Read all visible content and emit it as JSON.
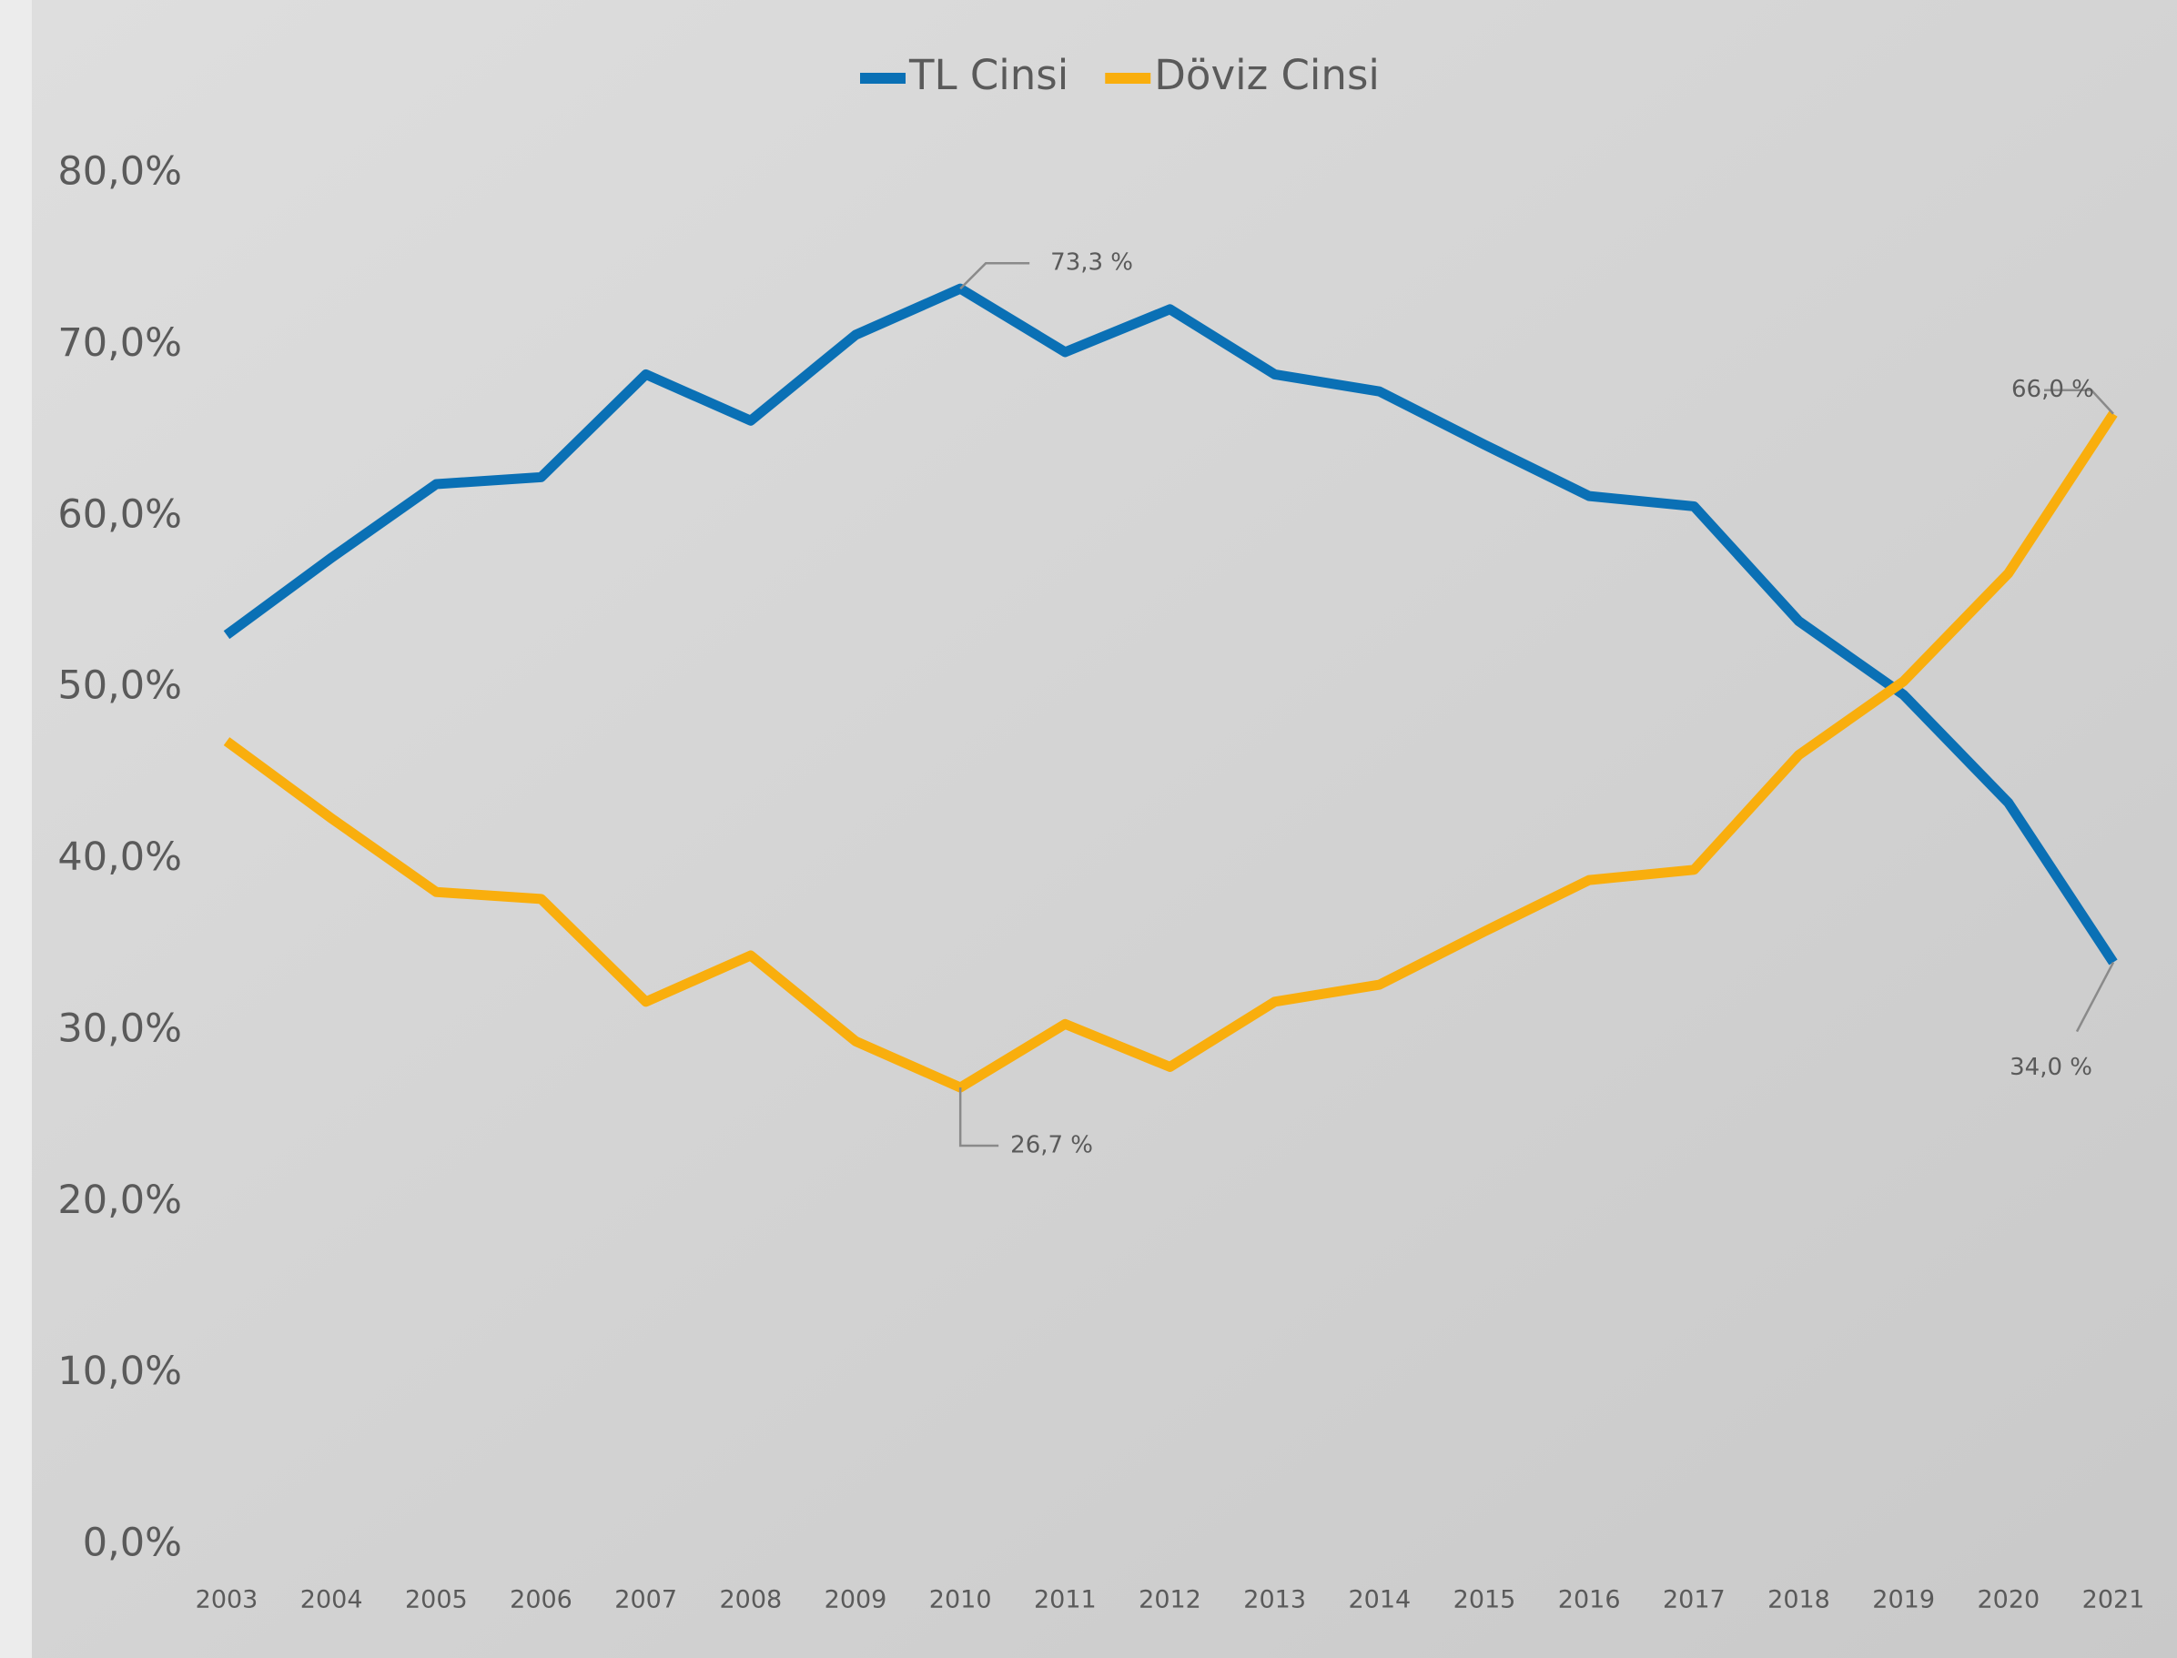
{
  "chart_data": {
    "type": "line",
    "categories": [
      "2003",
      "2004",
      "2005",
      "2006",
      "2007",
      "2008",
      "2009",
      "2010",
      "2011",
      "2012",
      "2013",
      "2014",
      "2015",
      "2016",
      "2017",
      "2018",
      "2019",
      "2020",
      "2021"
    ],
    "series": [
      {
        "name": "TL Cinsi",
        "color": "#0a70b5",
        "values": [
          53.1,
          57.6,
          61.9,
          62.3,
          68.3,
          65.6,
          70.6,
          73.3,
          69.6,
          72.1,
          68.3,
          67.3,
          64.2,
          61.2,
          60.6,
          53.9,
          49.6,
          43.3,
          34.0
        ],
        "value_labels": [
          null,
          null,
          null,
          null,
          null,
          null,
          null,
          "73,3 %",
          null,
          null,
          null,
          null,
          null,
          null,
          null,
          null,
          null,
          null,
          "34,0 %"
        ]
      },
      {
        "name": "Döviz Cinsi",
        "color": "#f9ae0d",
        "values": [
          46.9,
          42.4,
          38.1,
          37.7,
          31.7,
          34.4,
          29.4,
          26.7,
          30.4,
          27.9,
          31.7,
          32.7,
          35.8,
          38.8,
          39.4,
          46.1,
          50.4,
          56.7,
          66.0
        ],
        "value_labels": [
          null,
          null,
          null,
          null,
          null,
          null,
          null,
          "26,7 %",
          null,
          null,
          null,
          null,
          null,
          null,
          null,
          null,
          null,
          null,
          "66,0 %"
        ]
      }
    ],
    "ylim": [
      0,
      80
    ],
    "yticks": [
      {
        "value": 0,
        "label": "0,0%"
      },
      {
        "value": 10,
        "label": "10,0%"
      },
      {
        "value": 20,
        "label": "20,0%"
      },
      {
        "value": 30,
        "label": "30,0%"
      },
      {
        "value": 40,
        "label": "40,0%"
      },
      {
        "value": 50,
        "label": "50,0%"
      },
      {
        "value": 60,
        "label": "60,0%"
      },
      {
        "value": 70,
        "label": "70,0%"
      },
      {
        "value": 80,
        "label": "80,0%"
      }
    ],
    "grid": false,
    "legend": "top"
  }
}
